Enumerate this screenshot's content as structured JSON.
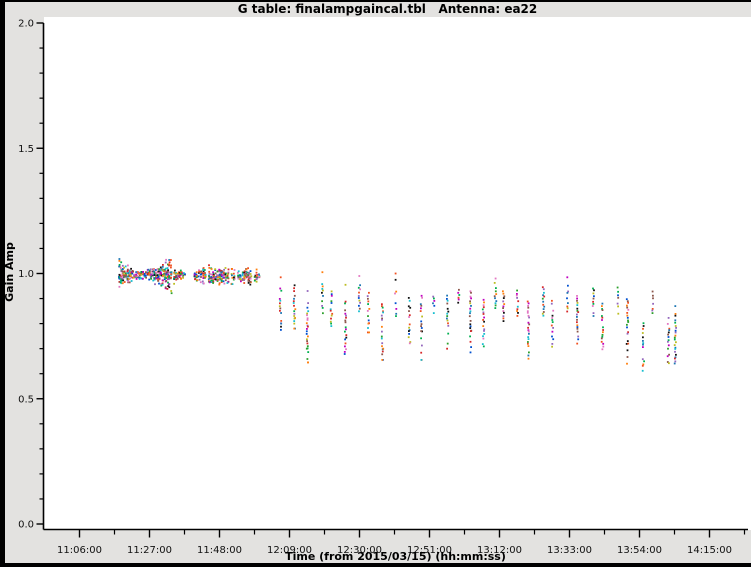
{
  "window": {
    "titlebar": "G table: finalampgaincal.tbl   Antenna: ea22"
  },
  "chart_data": {
    "type": "scatter",
    "title": "G table: finalampgaincal.tbl   Antenna: ea22",
    "xlabel": "Time (from 2015/03/15) (hh:mm:ss)",
    "ylabel": "Gain Amp",
    "x_tick_labels": [
      "11:06:00",
      "11:27:00",
      "11:48:00",
      "12:09:00",
      "12:30:00",
      "12:51:00",
      "13:12:00",
      "13:33:00",
      "13:54:00",
      "14:15:00"
    ],
    "x_major_interval_min": 21,
    "x_minor_interval_min": 10.5,
    "y_tick_labels": [
      "0.0",
      "0.5",
      "1.0",
      "1.5",
      "2.0"
    ],
    "ylim": [
      0.0,
      2.0
    ],
    "y_major_step": 0.5,
    "y_minor_step": 0.1,
    "grid": false,
    "legend": "none",
    "marker": "point",
    "marker_colors": [
      "#d62728",
      "#ff7f0e",
      "#bcbd22",
      "#2ca02c",
      "#17becf",
      "#1f77b4",
      "#9467bd",
      "#e377c2",
      "#8c564b",
      "#111111",
      "#00b050",
      "#0050d0",
      "#c000c0",
      "#f05020"
    ],
    "bands": [
      {
        "time_start": "11:18:00",
        "time_end": "11:37:30",
        "amp_center": 0.995,
        "half_spread_profile": [
          0.055,
          0.034,
          0.016,
          0.012,
          0.016,
          0.03,
          0.044,
          0.05,
          0.02,
          0.01
        ],
        "column_step_min": 0.5,
        "skip_prob": 0.05
      },
      {
        "time_start": "11:40:00",
        "time_end": "11:59:30",
        "amp_center": 0.99,
        "half_spread_profile": [
          0.018,
          0.027,
          0.03,
          0.024,
          0.03,
          0.026,
          0.03,
          0.022,
          0.026,
          0.012
        ],
        "column_step_min": 0.62,
        "skip_prob": 0.15
      }
    ],
    "streaks": [
      {
        "time": "12:06:18",
        "amp_top": 0.94,
        "amp_bottom": 0.8,
        "tail_to": 0.775,
        "outliers_above": [
          0.985
        ]
      },
      {
        "time": "12:10:30",
        "amp_top": 0.95,
        "amp_bottom": 0.82,
        "tail_to": 0.78
      },
      {
        "time": "12:14:24",
        "amp_top": 0.88,
        "amp_bottom": 0.7,
        "tail_to": 0.645,
        "outliers_above": [
          0.93
        ]
      },
      {
        "time": "12:18:54",
        "amp_top": 0.96,
        "amp_bottom": 0.84,
        "outliers_above": [
          1.005
        ]
      },
      {
        "time": "12:21:36",
        "amp_top": 0.93,
        "amp_bottom": 0.79
      },
      {
        "time": "12:25:48",
        "amp_top": 0.89,
        "amp_bottom": 0.68,
        "outliers_above": [
          0.955
        ]
      },
      {
        "time": "12:30:00",
        "amp_top": 0.955,
        "amp_bottom": 0.85,
        "outliers_above": [
          0.99
        ]
      },
      {
        "time": "12:32:42",
        "amp_top": 0.92,
        "amp_bottom": 0.8,
        "tail_to": 0.765
      },
      {
        "time": "12:36:54",
        "amp_top": 0.88,
        "amp_bottom": 0.7,
        "tail_to": 0.655
      },
      {
        "time": "12:40:48",
        "amp_top": 0.95,
        "amp_bottom": 0.83,
        "outliers_above": [
          1.0,
          0.975
        ]
      },
      {
        "time": "12:45:00",
        "amp_top": 0.9,
        "amp_bottom": 0.72
      },
      {
        "time": "12:48:36",
        "amp_top": 0.91,
        "amp_bottom": 0.77,
        "tail_to": 0.655
      },
      {
        "time": "12:52:12",
        "amp_top": 0.93,
        "amp_bottom": 0.84
      },
      {
        "time": "12:56:24",
        "amp_top": 0.92,
        "amp_bottom": 0.78,
        "tail_to": 0.7
      },
      {
        "time": "12:59:42",
        "amp_top": 0.945,
        "amp_bottom": 0.885
      },
      {
        "time": "13:03:18",
        "amp_top": 0.93,
        "amp_bottom": 0.77,
        "tail_to": 0.685
      },
      {
        "time": "13:07:12",
        "amp_top": 0.895,
        "amp_bottom": 0.71
      },
      {
        "time": "13:10:48",
        "amp_top": 0.96,
        "amp_bottom": 0.86,
        "outliers_above": [
          0.98
        ]
      },
      {
        "time": "13:13:12",
        "amp_top": 0.93,
        "amp_bottom": 0.81
      },
      {
        "time": "13:17:24",
        "amp_top": 0.95,
        "amp_bottom": 0.83
      },
      {
        "time": "13:20:42",
        "amp_top": 0.9,
        "amp_bottom": 0.71,
        "tail_to": 0.66
      },
      {
        "time": "13:25:12",
        "amp_top": 0.945,
        "amp_bottom": 0.83
      },
      {
        "time": "13:27:54",
        "amp_top": 0.89,
        "amp_bottom": 0.7
      },
      {
        "time": "13:32:24",
        "amp_top": 0.95,
        "amp_bottom": 0.85,
        "outliers_above": [
          0.985
        ]
      },
      {
        "time": "13:35:24",
        "amp_top": 0.91,
        "amp_bottom": 0.72
      },
      {
        "time": "13:40:12",
        "amp_top": 0.94,
        "amp_bottom": 0.83
      },
      {
        "time": "13:42:54",
        "amp_top": 0.88,
        "amp_bottom": 0.7
      },
      {
        "time": "13:47:24",
        "amp_top": 0.945,
        "amp_bottom": 0.84
      },
      {
        "time": "13:50:24",
        "amp_top": 0.9,
        "amp_bottom": 0.72,
        "tail_to": 0.64
      },
      {
        "time": "13:55:12",
        "amp_top": 0.8,
        "amp_bottom": 0.61
      },
      {
        "time": "13:57:54",
        "amp_top": 0.93,
        "amp_bottom": 0.84
      },
      {
        "time": "14:02:42",
        "amp_top": 0.82,
        "amp_bottom": 0.64
      },
      {
        "time": "14:04:48",
        "amp_top": 0.84,
        "amp_bottom": 0.64,
        "outliers_above": [
          0.87
        ]
      }
    ]
  }
}
